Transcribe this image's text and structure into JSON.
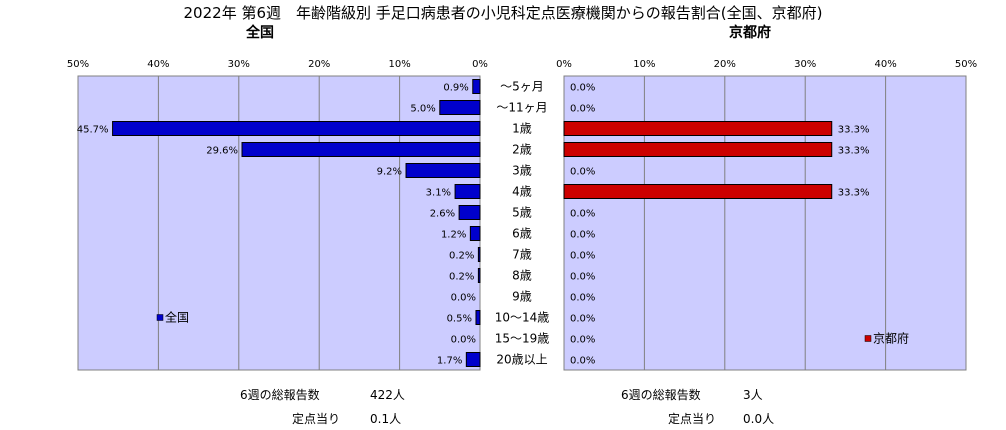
{
  "title": "2022年 第6週　年齢階級別 手足口病患者の小児科定点医療機関からの報告割合(全国、京都府)",
  "left_subtitle": "全国",
  "right_subtitle": "京都府",
  "footer": {
    "left_total_label": "6週の総報告数",
    "left_total_value": "422人",
    "left_per_label": "定点当り",
    "left_per_value": "0.1人",
    "right_total_label": "6週の総報告数",
    "right_total_value": "3人",
    "right_per_label": "定点当り",
    "right_per_value": "0.0人"
  },
  "colors": {
    "national": "#0000cc",
    "kyoto": "#cc0000",
    "plot_bg": "#ccccff"
  },
  "chart_data": [
    {
      "type": "bar",
      "orientation": "horizontal",
      "direction": "right-to-left",
      "title": "全国",
      "categories": [
        "〜5ヶ月",
        "〜11ヶ月",
        "1歳",
        "2歳",
        "3歳",
        "4歳",
        "5歳",
        "6歳",
        "7歳",
        "8歳",
        "9歳",
        "10〜14歳",
        "15〜19歳",
        "20歳以上"
      ],
      "series": [
        {
          "name": "全国",
          "values": [
            0.9,
            5.0,
            45.7,
            29.6,
            9.2,
            3.1,
            2.6,
            1.2,
            0.2,
            0.2,
            0.0,
            0.5,
            0.0,
            1.7
          ]
        }
      ],
      "data_labels": [
        "0.9%",
        "5.0%",
        "45.7%",
        "29.6%",
        "9.2%",
        "3.1%",
        "2.6%",
        "1.2%",
        "0.2%",
        "0.2%",
        "0.0%",
        "0.5%",
        "0.0%",
        "1.7%"
      ],
      "xlim": [
        0,
        50
      ],
      "ticks": [
        "50%",
        "40%",
        "30%",
        "20%",
        "10%",
        "0%"
      ],
      "legend": "bottom-left",
      "grid": true
    },
    {
      "type": "bar",
      "orientation": "horizontal",
      "title": "京都府",
      "categories": [
        "〜5ヶ月",
        "〜11ヶ月",
        "1歳",
        "2歳",
        "3歳",
        "4歳",
        "5歳",
        "6歳",
        "7歳",
        "8歳",
        "9歳",
        "10〜14歳",
        "15〜19歳",
        "20歳以上"
      ],
      "series": [
        {
          "name": "京都府",
          "values": [
            0.0,
            0.0,
            33.3,
            33.3,
            0.0,
            33.3,
            0.0,
            0.0,
            0.0,
            0.0,
            0.0,
            0.0,
            0.0,
            0.0
          ]
        }
      ],
      "data_labels": [
        "0.0%",
        "0.0%",
        "33.3%",
        "33.3%",
        "0.0%",
        "33.3%",
        "0.0%",
        "0.0%",
        "0.0%",
        "0.0%",
        "0.0%",
        "0.0%",
        "0.0%",
        "0.0%"
      ],
      "xlim": [
        0,
        50
      ],
      "ticks": [
        "0%",
        "10%",
        "20%",
        "30%",
        "40%",
        "50%"
      ],
      "legend": "bottom-right",
      "grid": true
    }
  ]
}
